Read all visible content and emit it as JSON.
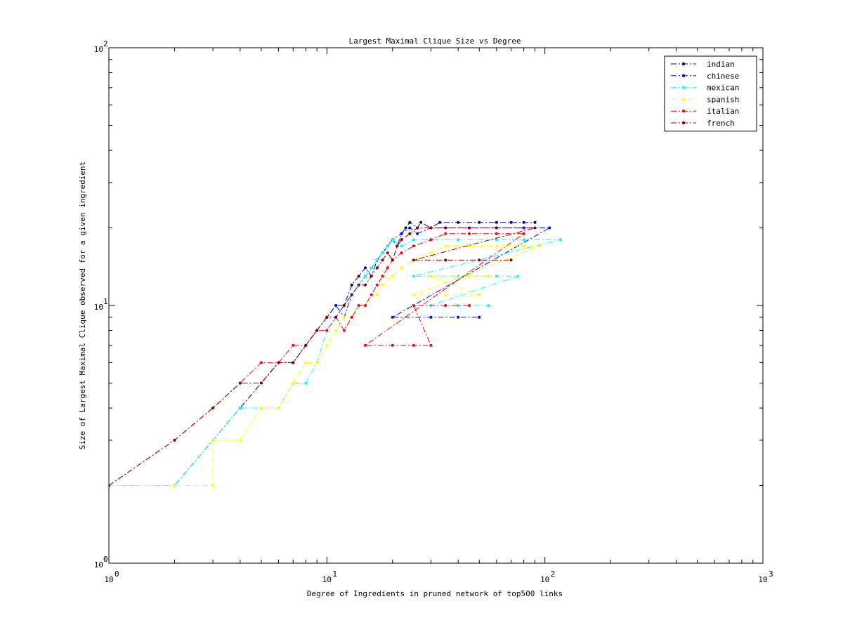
{
  "chart_data": {
    "type": "line",
    "title": "Largest Maximal Clique Size vs Degree",
    "xlabel": "Degree of Ingredients in pruned network of top500 links",
    "ylabel": "Size of Largest Maximal Clique observed for a given ingredient",
    "x_scale": "log",
    "y_scale": "log",
    "xlim": [
      1,
      1000
    ],
    "ylim": [
      1,
      100
    ],
    "x_ticks": [
      {
        "base": "10",
        "exp": "0"
      },
      {
        "base": "10",
        "exp": "1"
      },
      {
        "base": "10",
        "exp": "2"
      },
      {
        "base": "10",
        "exp": "3"
      }
    ],
    "y_ticks": [
      {
        "base": "10",
        "exp": "0"
      },
      {
        "base": "10",
        "exp": "1"
      },
      {
        "base": "10",
        "exp": "2"
      }
    ],
    "grid": false,
    "legend_position": "top-right",
    "series": [
      {
        "name": "indian",
        "color": "#00008B",
        "line_style": "dash-dot",
        "marker": "dot",
        "points": [
          [
            1,
            2
          ],
          [
            2,
            2
          ],
          [
            3,
            3
          ],
          [
            4,
            4
          ],
          [
            5,
            5
          ],
          [
            6,
            6
          ],
          [
            7,
            6
          ],
          [
            8,
            7
          ],
          [
            9,
            8
          ],
          [
            10,
            9
          ],
          [
            11,
            10
          ],
          [
            12,
            10
          ],
          [
            13,
            12
          ],
          [
            14,
            13
          ],
          [
            15,
            14
          ],
          [
            16,
            13
          ],
          [
            17,
            15
          ],
          [
            18,
            16
          ],
          [
            19,
            17
          ],
          [
            20,
            18
          ],
          [
            21,
            17
          ],
          [
            22,
            19
          ],
          [
            23,
            20
          ],
          [
            24,
            21
          ],
          [
            26,
            20
          ],
          [
            27,
            21
          ],
          [
            30,
            20
          ],
          [
            33,
            21
          ],
          [
            40,
            21
          ],
          [
            50,
            21
          ],
          [
            60,
            21
          ],
          [
            70,
            21
          ],
          [
            80,
            21
          ],
          [
            90,
            21
          ]
        ]
      },
      {
        "name": "chinese",
        "color": "#0000FF",
        "line_style": "dash-dot",
        "marker": "dot",
        "points": [
          [
            1,
            2
          ],
          [
            2,
            2
          ],
          [
            3,
            3
          ],
          [
            4,
            4
          ],
          [
            5,
            5
          ],
          [
            6,
            6
          ],
          [
            7,
            6
          ],
          [
            8,
            7
          ],
          [
            9,
            8
          ],
          [
            10,
            9
          ],
          [
            11,
            10
          ],
          [
            12,
            9
          ],
          [
            13,
            11
          ],
          [
            14,
            12
          ],
          [
            15,
            13
          ],
          [
            16,
            14
          ],
          [
            17,
            15
          ],
          [
            18,
            16
          ],
          [
            19,
            17
          ],
          [
            20,
            18
          ],
          [
            22,
            19
          ],
          [
            24,
            20
          ],
          [
            26,
            19
          ],
          [
            30,
            20
          ],
          [
            35,
            20
          ],
          [
            45,
            20
          ],
          [
            60,
            20
          ],
          [
            80,
            20
          ],
          [
            105,
            20
          ],
          [
            20,
            9
          ],
          [
            30,
            9
          ],
          [
            40,
            9
          ],
          [
            50,
            9
          ]
        ]
      },
      {
        "name": "mexican",
        "color": "#00FFFF",
        "line_style": "dash-dot",
        "marker": "dot",
        "points": [
          [
            1,
            2
          ],
          [
            2,
            2
          ],
          [
            3,
            3
          ],
          [
            4,
            4
          ],
          [
            5,
            4
          ],
          [
            6,
            4
          ],
          [
            7,
            5
          ],
          [
            8,
            5
          ],
          [
            9,
            6
          ],
          [
            10,
            8
          ],
          [
            11,
            9
          ],
          [
            12,
            10
          ],
          [
            13,
            11
          ],
          [
            14,
            12
          ],
          [
            15,
            13
          ],
          [
            16,
            14
          ],
          [
            17,
            15
          ],
          [
            18,
            16
          ],
          [
            19,
            17
          ],
          [
            20,
            18
          ],
          [
            22,
            17
          ],
          [
            25,
            18
          ],
          [
            30,
            18
          ],
          [
            40,
            18
          ],
          [
            60,
            18
          ],
          [
            80,
            18
          ],
          [
            118,
            18
          ],
          [
            25,
            13
          ],
          [
            40,
            13
          ],
          [
            60,
            13
          ],
          [
            75,
            13
          ],
          [
            30,
            10
          ],
          [
            40,
            10
          ],
          [
            55,
            10
          ]
        ]
      },
      {
        "name": "spanish",
        "color": "#FFFF00",
        "line_style": "dash",
        "marker": "dot",
        "points": [
          [
            1,
            2
          ],
          [
            2,
            2
          ],
          [
            3,
            2
          ],
          [
            3,
            3
          ],
          [
            4,
            3
          ],
          [
            5,
            4
          ],
          [
            6,
            4
          ],
          [
            7,
            5
          ],
          [
            8,
            6
          ],
          [
            9,
            6
          ],
          [
            10,
            7
          ],
          [
            11,
            8
          ],
          [
            12,
            9
          ],
          [
            13,
            9
          ],
          [
            14,
            10
          ],
          [
            15,
            10
          ],
          [
            16,
            11
          ],
          [
            17,
            11
          ],
          [
            18,
            12
          ],
          [
            20,
            13
          ],
          [
            22,
            14
          ],
          [
            25,
            15
          ],
          [
            30,
            16
          ],
          [
            35,
            17
          ],
          [
            45,
            17
          ],
          [
            60,
            17
          ],
          [
            80,
            17
          ],
          [
            95,
            17
          ],
          [
            25,
            11
          ],
          [
            35,
            11
          ],
          [
            50,
            11
          ],
          [
            30,
            13
          ],
          [
            45,
            13
          ],
          [
            55,
            13
          ]
        ]
      },
      {
        "name": "italian",
        "color": "#FF0000",
        "line_style": "dash-dot",
        "marker": "dot",
        "points": [
          [
            1,
            2
          ],
          [
            2,
            3
          ],
          [
            3,
            4
          ],
          [
            4,
            5
          ],
          [
            5,
            6
          ],
          [
            6,
            6
          ],
          [
            7,
            7
          ],
          [
            8,
            7
          ],
          [
            9,
            8
          ],
          [
            10,
            8
          ],
          [
            11,
            9
          ],
          [
            12,
            8
          ],
          [
            13,
            9
          ],
          [
            14,
            10
          ],
          [
            15,
            10
          ],
          [
            16,
            11
          ],
          [
            17,
            12
          ],
          [
            18,
            13
          ],
          [
            19,
            14
          ],
          [
            20,
            15
          ],
          [
            22,
            16
          ],
          [
            25,
            17
          ],
          [
            30,
            18
          ],
          [
            35,
            19
          ],
          [
            45,
            19
          ],
          [
            60,
            19
          ],
          [
            80,
            19
          ],
          [
            15,
            7
          ],
          [
            20,
            7
          ],
          [
            25,
            7
          ],
          [
            30,
            7
          ],
          [
            25,
            10
          ],
          [
            35,
            10
          ],
          [
            45,
            10
          ]
        ]
      },
      {
        "name": "french",
        "color": "#8B0000",
        "line_style": "dash-dot",
        "marker": "dot",
        "points": [
          [
            1,
            2
          ],
          [
            2,
            3
          ],
          [
            3,
            4
          ],
          [
            4,
            5
          ],
          [
            5,
            5
          ],
          [
            6,
            6
          ],
          [
            7,
            6
          ],
          [
            8,
            7
          ],
          [
            9,
            8
          ],
          [
            10,
            9
          ],
          [
            11,
            9
          ],
          [
            12,
            10
          ],
          [
            13,
            11
          ],
          [
            14,
            12
          ],
          [
            15,
            12
          ],
          [
            16,
            13
          ],
          [
            17,
            14
          ],
          [
            18,
            15
          ],
          [
            19,
            16
          ],
          [
            20,
            15
          ],
          [
            21,
            17
          ],
          [
            22,
            18
          ],
          [
            24,
            19
          ],
          [
            26,
            20
          ],
          [
            30,
            20
          ],
          [
            35,
            20
          ],
          [
            45,
            20
          ],
          [
            60,
            20
          ],
          [
            90,
            20
          ],
          [
            25,
            15
          ],
          [
            35,
            15
          ],
          [
            50,
            15
          ],
          [
            70,
            15
          ]
        ]
      }
    ]
  }
}
